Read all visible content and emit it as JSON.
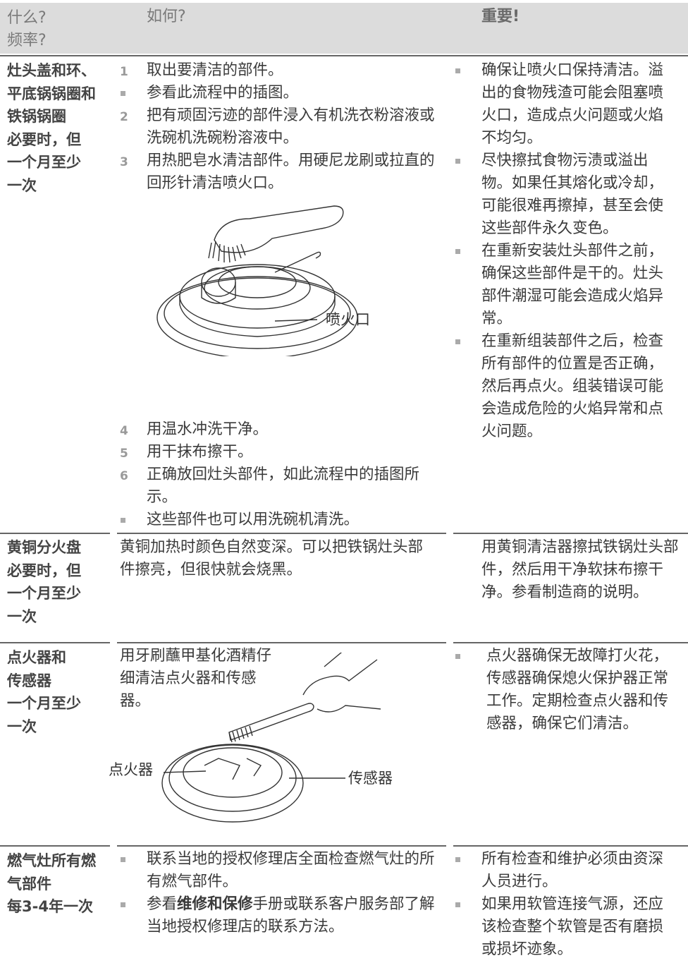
{
  "header": {
    "what": [
      "什么?",
      "频率?"
    ],
    "how": "如何?",
    "important": "重要!"
  },
  "rows": [
    {
      "what": [
        "灶头盖和环、",
        "平底锅锅圈和",
        "铁锅锅圈",
        "必要时，但",
        "一个月至少",
        "一次"
      ],
      "how": {
        "steps_before": [
          {
            "marker": "1",
            "text": "取出要清洁的部件。"
          },
          {
            "text": "参看此流程中的插图。"
          },
          {
            "marker": "2",
            "text": "把有顽固污迹的部件浸入有机洗衣粉溶液或洗碗机洗碗粉溶液中。"
          },
          {
            "marker": "3",
            "text": "用热肥皂水清洁部件。用硬尼龙刷或拉直的回形针清洁喷火口。"
          }
        ],
        "figure_label": "喷火口",
        "steps_after": [
          {
            "marker": "4",
            "text": "用温水冲洗干净。"
          },
          {
            "marker": "5",
            "text": "用干抹布擦干。"
          },
          {
            "marker": "6",
            "text": "正确放回灶头部件，如此流程中的插图所示。"
          },
          {
            "text": "这些部件也可以用洗碗机清洗。"
          }
        ]
      },
      "important": [
        "确保让喷火口保持清洁。溢出的食物残渣可能会阻塞喷火口，造成点火问题或火焰不均匀。",
        "尽快擦拭食物污渍或溢出物。如果任其熔化或冷却，可能很难再擦掉，甚至会使这些部件永久变色。",
        "在重新安装灶头部件之前，确保这些部件是干的。灶头部件潮湿可能会造成火焰异常。",
        "在重新组装部件之后，检查所有部件的位置是否正确，然后再点火。组装错误可能会造成危险的火焰异常和点火问题。"
      ]
    },
    {
      "what": [
        "黄铜分火盘",
        "必要时，但",
        "一个月至少",
        "一次"
      ],
      "how": "黄铜加热时颜色自然变深。可以把铁锅灶头部件擦亮，但很快就会烧黑。",
      "important": "用黄铜清洁器擦拭铁锅灶头部件，然后用干净软抹布擦干净。参看制造商的说明。"
    },
    {
      "what": [
        "点火器和",
        "传感器",
        "一个月至少",
        "一次"
      ],
      "how": {
        "text": "用牙刷蘸甲基化酒精仔细清洁点火器和传感器。",
        "labels": [
          "点火器",
          "传感器"
        ]
      },
      "important": [
        "点火器确保无故障打火花，传感器确保熄火保护器正常工作。定期检查点火器和传感器，确保它们清洁。"
      ]
    },
    {
      "what": [
        "燃气灶所有燃",
        "气部件",
        "每3-4年一次"
      ],
      "how": [
        [
          "联系当地的授权修理店全面检查燃气灶的所有燃气部件。"
        ],
        [
          "参看",
          "维修和保修",
          "手册或联系客户服务部了解当地授权修理店的联系方法。"
        ]
      ],
      "important": [
        "所有检查和维护必须由资深人员进行。",
        "如果用软管连接气源，还应该检查整个软管是否有磨损或损坏迹象。"
      ]
    }
  ]
}
